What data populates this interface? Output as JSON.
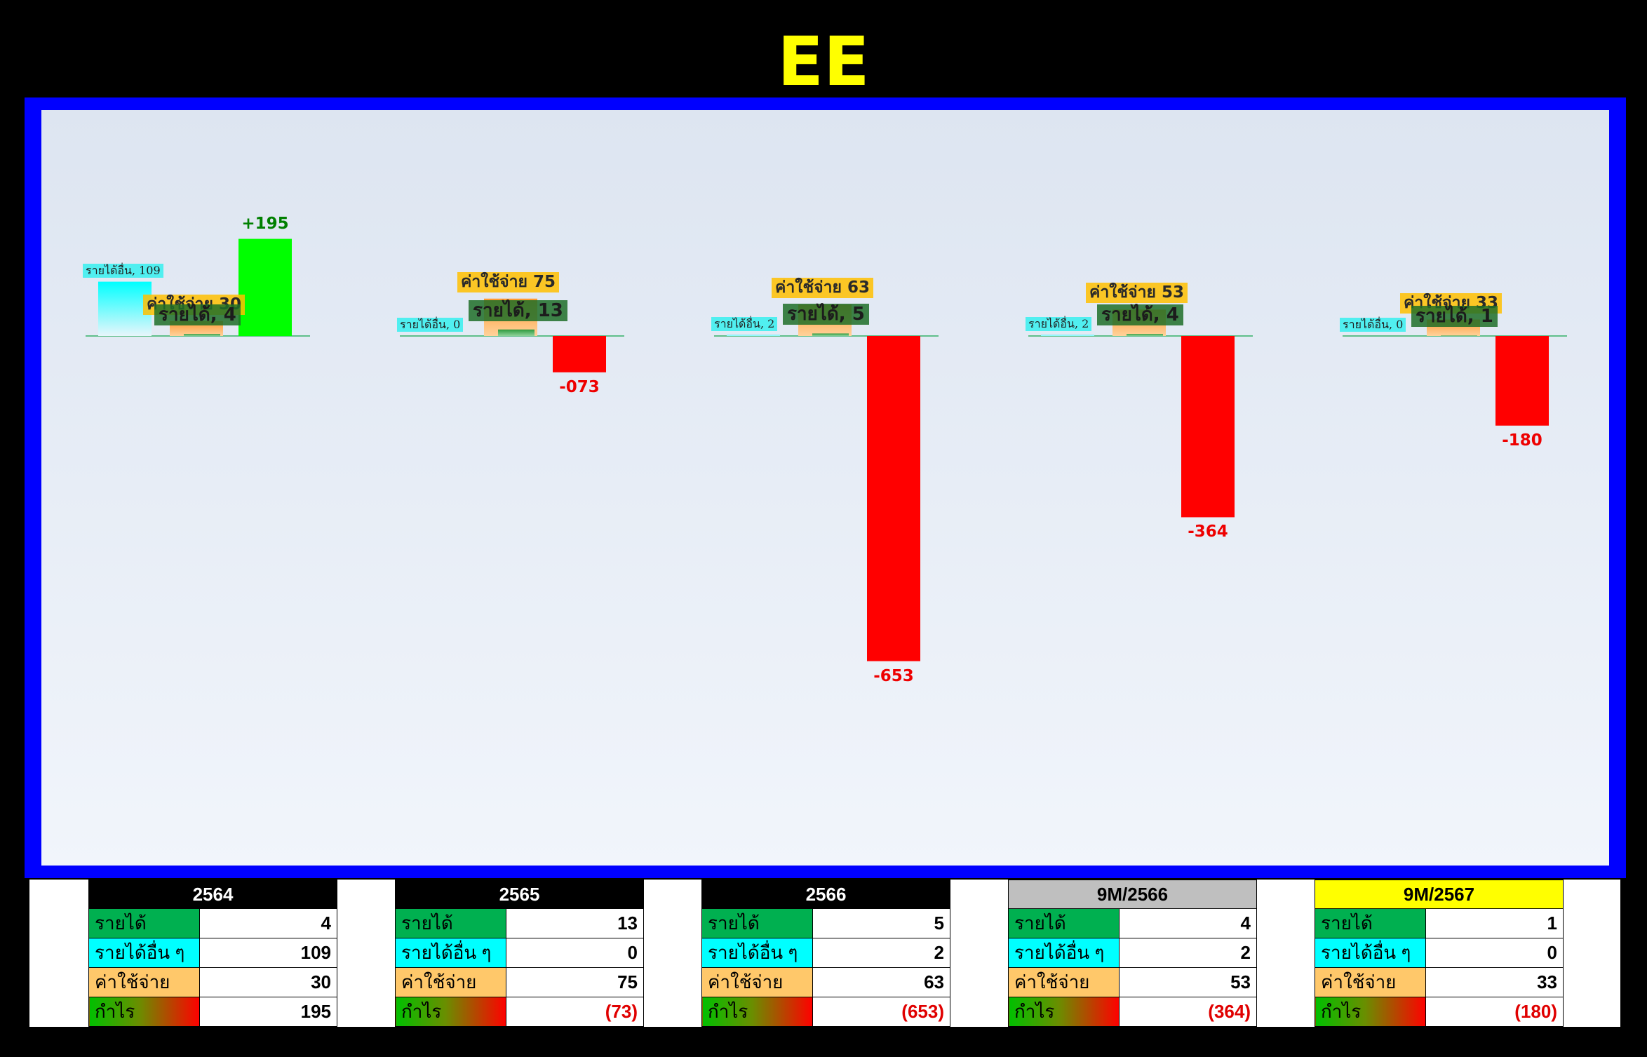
{
  "title": "EE",
  "colors": {
    "frame": "#0000ff",
    "income": "#00b050",
    "other_income": "#00ffff",
    "expense": "#ffc86a",
    "profit_positive": "#00ff00",
    "profit_negative": "#ff0000",
    "title": "#ffff00"
  },
  "chart_data": {
    "type": "bar",
    "title": "EE",
    "grid": false,
    "categories": [
      "2564",
      "2565",
      "2566",
      "9M/2566",
      "9M/2567"
    ],
    "series": [
      {
        "name": "รายได้อื่น",
        "values": [
          109,
          0,
          2,
          2,
          0
        ]
      },
      {
        "name": "ค่าใช้จ่าย",
        "values": [
          30,
          75,
          63,
          53,
          33
        ]
      },
      {
        "name": "รายได้",
        "values": [
          4,
          13,
          5,
          4,
          1
        ]
      },
      {
        "name": "กำไร",
        "values": [
          195,
          -73,
          -653,
          -364,
          -180
        ]
      }
    ],
    "labels": {
      "income": [
        "รายได้, 4",
        "รายได้, 13",
        "รายได้, 5",
        "รายได้, 4",
        "รายได้, 1"
      ],
      "expense": [
        "ค่าใช้จ่าย 30",
        "ค่าใช้จ่าย 75",
        "ค่าใช้จ่าย 63",
        "ค่าใช้จ่าย 53",
        "ค่าใช้จ่าย 33"
      ],
      "other": [
        "รายได้อื่น, 109",
        "รายได้อื่น, 0",
        "รายได้อื่น, 2",
        "รายได้อื่น, 2",
        "รายได้อื่น, 0"
      ],
      "profit": [
        "+195",
        "-073",
        "-653",
        "-364",
        "-180"
      ]
    }
  },
  "summary_tables": [
    {
      "header": "2564",
      "style": "black",
      "rows": [
        {
          "label": "รายได้",
          "value": "4",
          "kind": "inc"
        },
        {
          "label": "รายได้อื่น ๆ",
          "value": "109",
          "kind": "oth"
        },
        {
          "label": "ค่าใช้จ่าย",
          "value": "30",
          "kind": "exp"
        },
        {
          "label": "กำไร",
          "value": "195",
          "kind": "pro"
        }
      ]
    },
    {
      "header": "2565",
      "style": "black",
      "rows": [
        {
          "label": "รายได้",
          "value": "13",
          "kind": "inc"
        },
        {
          "label": "รายได้อื่น ๆ",
          "value": "0",
          "kind": "oth"
        },
        {
          "label": "ค่าใช้จ่าย",
          "value": "75",
          "kind": "exp"
        },
        {
          "label": "กำไร",
          "value": "(73)",
          "kind": "pro"
        }
      ]
    },
    {
      "header": "2566",
      "style": "black",
      "rows": [
        {
          "label": "รายได้",
          "value": "5",
          "kind": "inc"
        },
        {
          "label": "รายได้อื่น ๆ",
          "value": "2",
          "kind": "oth"
        },
        {
          "label": "ค่าใช้จ่าย",
          "value": "63",
          "kind": "exp"
        },
        {
          "label": "กำไร",
          "value": "(653)",
          "kind": "pro"
        }
      ]
    },
    {
      "header": "9M/2566",
      "style": "grey",
      "rows": [
        {
          "label": "รายได้",
          "value": "4",
          "kind": "inc"
        },
        {
          "label": "รายได้อื่น ๆ",
          "value": "2",
          "kind": "oth"
        },
        {
          "label": "ค่าใช้จ่าย",
          "value": "53",
          "kind": "exp"
        },
        {
          "label": "กำไร",
          "value": "(364)",
          "kind": "pro"
        }
      ]
    },
    {
      "header": "9M/2567",
      "style": "yellow",
      "rows": [
        {
          "label": "รายได้",
          "value": "1",
          "kind": "inc"
        },
        {
          "label": "รายได้อื่น ๆ",
          "value": "0",
          "kind": "oth"
        },
        {
          "label": "ค่าใช้จ่าย",
          "value": "33",
          "kind": "exp"
        },
        {
          "label": "กำไร",
          "value": "(180)",
          "kind": "pro"
        }
      ]
    }
  ]
}
